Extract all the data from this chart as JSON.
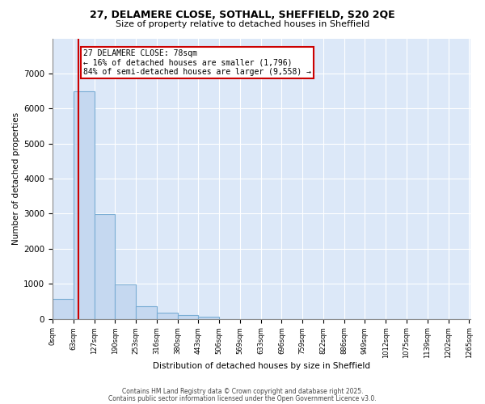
{
  "title1": "27, DELAMERE CLOSE, SOTHALL, SHEFFIELD, S20 2QE",
  "title2": "Size of property relative to detached houses in Sheffield",
  "xlabel": "Distribution of detached houses by size in Sheffield",
  "ylabel": "Number of detached properties",
  "bar_color": "#c5d8f0",
  "bar_edge_color": "#7aadd4",
  "background_color": "#dce8f8",
  "grid_color": "#ffffff",
  "property_size": 78,
  "property_line_color": "#cc0000",
  "annotation_box_color": "#cc0000",
  "annotation_text": "27 DELAMERE CLOSE: 78sqm\n← 16% of detached houses are smaller (1,796)\n84% of semi-detached houses are larger (9,558) →",
  "bin_width": 63,
  "bin_starts": [
    0,
    63,
    126,
    189,
    252,
    315,
    378,
    441,
    504,
    567,
    630,
    693,
    756,
    819,
    882,
    945,
    1008,
    1071,
    1134,
    1197
  ],
  "bar_heights": [
    560,
    6480,
    2980,
    985,
    350,
    165,
    95,
    65,
    0,
    0,
    0,
    0,
    0,
    0,
    0,
    0,
    0,
    0,
    0,
    0
  ],
  "xlim_min": 0,
  "xlim_max": 1265,
  "ylim_min": 0,
  "ylim_max": 8000,
  "yticks": [
    0,
    1000,
    2000,
    3000,
    4000,
    5000,
    6000,
    7000,
    8000
  ],
  "xtick_labels": [
    "0sqm",
    "63sqm",
    "127sqm",
    "190sqm",
    "253sqm",
    "316sqm",
    "380sqm",
    "443sqm",
    "506sqm",
    "569sqm",
    "633sqm",
    "696sqm",
    "759sqm",
    "822sqm",
    "886sqm",
    "949sqm",
    "1012sqm",
    "1075sqm",
    "1139sqm",
    "1202sqm",
    "1265sqm"
  ],
  "footer1": "Contains HM Land Registry data © Crown copyright and database right 2025.",
  "footer2": "Contains public sector information licensed under the Open Government Licence v3.0."
}
